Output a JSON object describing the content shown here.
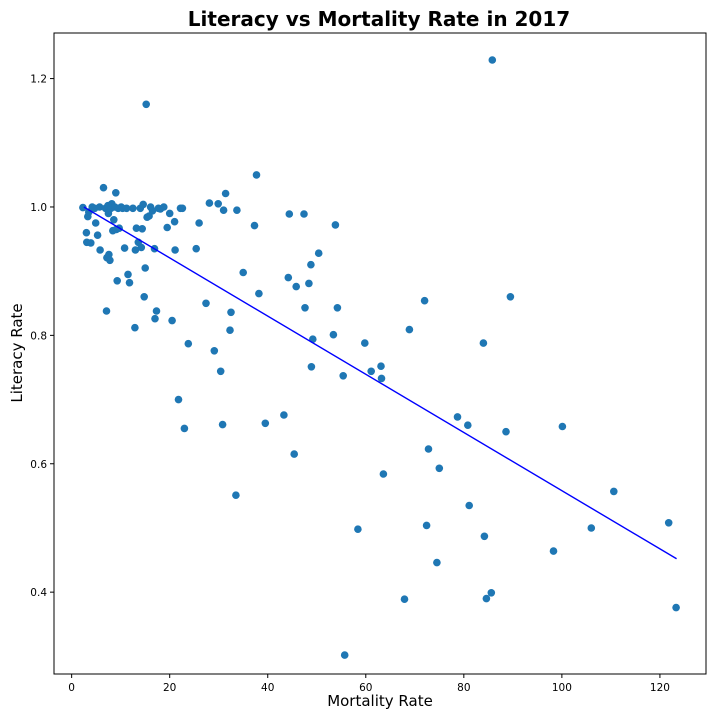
{
  "chart_data": {
    "type": "scatter",
    "title": "Literacy vs Mortality Rate in 2017",
    "xlabel": "Mortality Rate",
    "ylabel": "Literacy Rate",
    "xlim": [
      -3.6,
      129.4
    ],
    "ylim": [
      0.2725,
      1.271
    ],
    "xticks": [
      0,
      20,
      40,
      60,
      80,
      100,
      120
    ],
    "yticks": [
      0.4,
      0.6,
      0.8,
      1.0,
      1.2
    ],
    "ytick_labels": [
      "0.4",
      "0.6",
      "0.8",
      "1.0",
      "1.2"
    ],
    "grid": false,
    "colors": {
      "points": "#1f77b4",
      "trendline": "#0000ff"
    },
    "trendline": {
      "x": [
        2.5,
        123.4
      ],
      "y": [
        1.0,
        0.452
      ]
    },
    "points": [
      [
        2.3,
        0.999
      ],
      [
        3.0,
        0.96
      ],
      [
        3.1,
        0.945
      ],
      [
        3.3,
        0.985
      ],
      [
        3.5,
        0.992
      ],
      [
        3.9,
        0.944
      ],
      [
        4.2,
        1.0
      ],
      [
        4.7,
        0.998
      ],
      [
        4.9,
        0.975
      ],
      [
        5.3,
        0.956
      ],
      [
        5.7,
        1.0
      ],
      [
        5.8,
        0.933
      ],
      [
        6.5,
        1.03
      ],
      [
        6.9,
        0.998
      ],
      [
        7.1,
        0.838
      ],
      [
        7.2,
        0.921
      ],
      [
        7.4,
        1.002
      ],
      [
        7.5,
        0.99
      ],
      [
        7.6,
        0.926
      ],
      [
        7.8,
        0.917
      ],
      [
        8.0,
        0.998
      ],
      [
        8.2,
        1.005
      ],
      [
        8.4,
        0.963
      ],
      [
        8.6,
        0.98
      ],
      [
        8.8,
        1.0
      ],
      [
        9.0,
        1.022
      ],
      [
        9.1,
        0.965
      ],
      [
        9.3,
        0.885
      ],
      [
        9.5,
        0.998
      ],
      [
        9.7,
        0.967
      ],
      [
        10.1,
        1.0
      ],
      [
        10.4,
        0.998
      ],
      [
        10.8,
        0.936
      ],
      [
        11.2,
        0.998
      ],
      [
        11.5,
        0.895
      ],
      [
        11.8,
        0.882
      ],
      [
        12.5,
        0.998
      ],
      [
        12.9,
        0.812
      ],
      [
        13.0,
        0.933
      ],
      [
        13.2,
        0.967
      ],
      [
        13.6,
        0.945
      ],
      [
        14.0,
        0.998
      ],
      [
        14.2,
        0.937
      ],
      [
        14.4,
        0.966
      ],
      [
        14.6,
        1.004
      ],
      [
        14.8,
        0.86
      ],
      [
        15.0,
        0.905
      ],
      [
        15.2,
        1.16
      ],
      [
        15.4,
        0.984
      ],
      [
        15.8,
        0.986
      ],
      [
        16.1,
        1.0
      ],
      [
        16.5,
        0.994
      ],
      [
        16.9,
        0.935
      ],
      [
        17.0,
        0.826
      ],
      [
        17.3,
        0.838
      ],
      [
        17.7,
        0.998
      ],
      [
        18.1,
        0.997
      ],
      [
        18.8,
        1.0
      ],
      [
        19.5,
        0.968
      ],
      [
        20.0,
        0.99
      ],
      [
        20.5,
        0.823
      ],
      [
        21.0,
        0.977
      ],
      [
        21.1,
        0.933
      ],
      [
        21.8,
        0.7
      ],
      [
        22.2,
        0.998
      ],
      [
        22.6,
        0.998
      ],
      [
        23.0,
        0.655
      ],
      [
        23.8,
        0.787
      ],
      [
        25.4,
        0.935
      ],
      [
        26.0,
        0.975
      ],
      [
        27.4,
        0.85
      ],
      [
        28.1,
        1.006
      ],
      [
        29.1,
        0.776
      ],
      [
        29.9,
        1.005
      ],
      [
        30.4,
        0.744
      ],
      [
        30.8,
        0.661
      ],
      [
        31.0,
        0.995
      ],
      [
        31.4,
        1.021
      ],
      [
        32.3,
        0.808
      ],
      [
        32.5,
        0.836
      ],
      [
        33.5,
        0.551
      ],
      [
        33.7,
        0.995
      ],
      [
        35.0,
        0.898
      ],
      [
        37.3,
        0.971
      ],
      [
        37.7,
        1.05
      ],
      [
        38.2,
        0.865
      ],
      [
        39.5,
        0.663
      ],
      [
        43.3,
        0.676
      ],
      [
        44.2,
        0.89
      ],
      [
        44.4,
        0.989
      ],
      [
        45.4,
        0.615
      ],
      [
        45.8,
        0.876
      ],
      [
        47.4,
        0.989
      ],
      [
        47.6,
        0.843
      ],
      [
        48.4,
        0.881
      ],
      [
        48.8,
        0.91
      ],
      [
        48.9,
        0.751
      ],
      [
        49.2,
        0.794
      ],
      [
        50.4,
        0.928
      ],
      [
        53.4,
        0.801
      ],
      [
        53.8,
        0.972
      ],
      [
        54.2,
        0.843
      ],
      [
        55.4,
        0.737
      ],
      [
        58.4,
        0.498
      ],
      [
        59.8,
        0.788
      ],
      [
        61.1,
        0.744
      ],
      [
        63.1,
        0.752
      ],
      [
        63.2,
        0.733
      ],
      [
        63.6,
        0.584
      ],
      [
        67.9,
        0.389
      ],
      [
        68.9,
        0.809
      ],
      [
        72.0,
        0.854
      ],
      [
        72.4,
        0.504
      ],
      [
        72.8,
        0.623
      ],
      [
        74.5,
        0.446
      ],
      [
        75.0,
        0.593
      ],
      [
        78.7,
        0.673
      ],
      [
        80.8,
        0.66
      ],
      [
        81.1,
        0.535
      ],
      [
        84.0,
        0.788
      ],
      [
        84.2,
        0.487
      ],
      [
        84.6,
        0.39
      ],
      [
        85.6,
        0.399
      ],
      [
        85.8,
        1.229
      ],
      [
        88.6,
        0.65
      ],
      [
        89.5,
        0.86
      ],
      [
        98.3,
        0.464
      ],
      [
        100.1,
        0.658
      ],
      [
        106.0,
        0.5
      ],
      [
        110.6,
        0.557
      ],
      [
        121.8,
        0.508
      ],
      [
        123.3,
        0.376
      ],
      [
        55.7,
        0.302
      ]
    ]
  }
}
